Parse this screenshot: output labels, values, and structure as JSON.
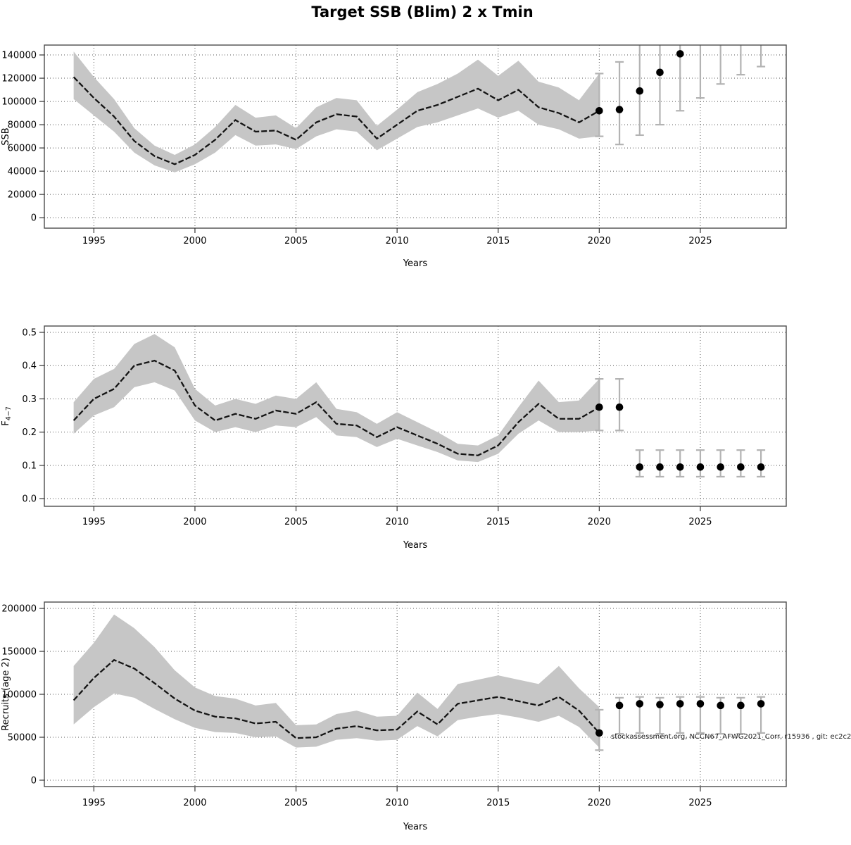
{
  "title": "Target SSB (Blim) 2 x Tmin",
  "watermark": "stockassessment.org, NCCN67_AFWG2021_Corr, r15936 , git: ec2c2",
  "colors": {
    "background": "#ffffff",
    "band": "#c6c6c6",
    "line": "#141414",
    "errorbar": "#b3b3b3",
    "point": "#000000",
    "grid": "#555555",
    "frame": "#4d4d4d",
    "text": "#000000"
  },
  "chart_data": [
    {
      "type": "line",
      "id": "ssb",
      "ylabel": "SSB",
      "xlabel": "Years",
      "xlim": [
        1992.55,
        2029.25
      ],
      "ylim": [
        -9000,
        148500
      ],
      "x_ticks": [
        1995,
        2000,
        2005,
        2010,
        2015,
        2020,
        2025
      ],
      "y_ticks": [
        0,
        20000,
        40000,
        60000,
        80000,
        100000,
        120000,
        140000
      ],
      "y_tick_decimals": 0,
      "grid": true,
      "legend_position": "none",
      "years": [
        1994,
        1995,
        1996,
        1997,
        1998,
        1999,
        2000,
        2001,
        2002,
        2003,
        2004,
        2005,
        2006,
        2007,
        2008,
        2009,
        2010,
        2011,
        2012,
        2013,
        2014,
        2015,
        2016,
        2017,
        2018,
        2019,
        2020
      ],
      "estimate": [
        121000,
        103000,
        87000,
        66000,
        53000,
        46000,
        54000,
        67000,
        84000,
        74000,
        75000,
        67000,
        82000,
        89000,
        87000,
        68000,
        80000,
        92000,
        97000,
        104000,
        111000,
        101000,
        110000,
        95000,
        90000,
        82000,
        92000
      ],
      "lower": [
        102000,
        88000,
        74000,
        56000,
        45000,
        39000,
        46000,
        56000,
        71000,
        62000,
        63000,
        59000,
        70000,
        76000,
        74000,
        58000,
        68000,
        78000,
        82000,
        88000,
        94000,
        86000,
        92000,
        80000,
        76000,
        68000,
        70000
      ],
      "upper": [
        143000,
        121000,
        102000,
        77000,
        62000,
        54000,
        63000,
        78000,
        97000,
        86000,
        88000,
        77000,
        95000,
        103000,
        101000,
        79000,
        93000,
        108000,
        115000,
        124000,
        136000,
        122000,
        135000,
        117000,
        112000,
        101000,
        124000
      ],
      "forecast": {
        "years": [
          2020,
          2021,
          2022,
          2023,
          2024,
          2025,
          2026,
          2027,
          2028
        ],
        "values": [
          92000,
          93000,
          109000,
          125000,
          141000,
          null,
          null,
          null,
          null
        ],
        "lower": [
          70000,
          63000,
          71000,
          80000,
          92000,
          103000,
          115000,
          123000,
          130000
        ],
        "upper": [
          124000,
          134000,
          null,
          null,
          null,
          null,
          null,
          null,
          null
        ]
      }
    },
    {
      "type": "line",
      "id": "f4-7",
      "ylabel": "F",
      "ylabel_sub": "4−7",
      "xlabel": "Years",
      "xlim": [
        1992.55,
        2029.25
      ],
      "ylim": [
        -0.023,
        0.519
      ],
      "x_ticks": [
        1995,
        2000,
        2005,
        2010,
        2015,
        2020,
        2025
      ],
      "y_ticks": [
        0.0,
        0.1,
        0.2,
        0.3,
        0.4,
        0.5
      ],
      "y_tick_decimals": 1,
      "grid": true,
      "legend_position": "none",
      "years": [
        1994,
        1995,
        1996,
        1997,
        1998,
        1999,
        2000,
        2001,
        2002,
        2003,
        2004,
        2005,
        2006,
        2007,
        2008,
        2009,
        2010,
        2011,
        2012,
        2013,
        2014,
        2015,
        2016,
        2017,
        2018,
        2019,
        2020
      ],
      "estimate": [
        0.235,
        0.3,
        0.33,
        0.4,
        0.415,
        0.385,
        0.28,
        0.235,
        0.255,
        0.24,
        0.265,
        0.255,
        0.29,
        0.225,
        0.22,
        0.185,
        0.215,
        0.19,
        0.165,
        0.135,
        0.13,
        0.16,
        0.23,
        0.285,
        0.24,
        0.24,
        0.275
      ],
      "lower": [
        0.195,
        0.25,
        0.275,
        0.335,
        0.35,
        0.325,
        0.235,
        0.2,
        0.215,
        0.2,
        0.22,
        0.215,
        0.245,
        0.19,
        0.185,
        0.155,
        0.18,
        0.16,
        0.14,
        0.115,
        0.11,
        0.135,
        0.195,
        0.235,
        0.2,
        0.2,
        0.205
      ],
      "upper": [
        0.29,
        0.36,
        0.39,
        0.465,
        0.495,
        0.455,
        0.33,
        0.28,
        0.3,
        0.285,
        0.31,
        0.3,
        0.35,
        0.27,
        0.26,
        0.225,
        0.26,
        0.23,
        0.2,
        0.165,
        0.16,
        0.19,
        0.275,
        0.355,
        0.29,
        0.295,
        0.36
      ],
      "forecast": {
        "years": [
          2020,
          2021,
          2022,
          2023,
          2024,
          2025,
          2026,
          2027,
          2028
        ],
        "values": [
          0.275,
          0.275,
          0.095,
          0.095,
          0.095,
          0.095,
          0.095,
          0.095,
          0.095
        ],
        "lower": [
          0.205,
          0.205,
          0.066,
          0.066,
          0.066,
          0.066,
          0.066,
          0.066,
          0.066
        ],
        "upper": [
          0.36,
          0.36,
          0.146,
          0.146,
          0.146,
          0.146,
          0.146,
          0.146,
          0.146
        ]
      }
    },
    {
      "type": "line",
      "id": "recruits",
      "ylabel": "Recruits (age 2)",
      "xlabel": "Years",
      "xlim": [
        1992.55,
        2029.25
      ],
      "ylim": [
        -7400,
        207400
      ],
      "x_ticks": [
        1995,
        2000,
        2005,
        2010,
        2015,
        2020,
        2025
      ],
      "y_ticks": [
        0,
        50000,
        100000,
        150000,
        200000
      ],
      "y_tick_decimals": 0,
      "grid": true,
      "legend_position": "none",
      "years": [
        1994,
        1995,
        1996,
        1997,
        1998,
        1999,
        2000,
        2001,
        2002,
        2003,
        2004,
        2005,
        2006,
        2007,
        2008,
        2009,
        2010,
        2011,
        2012,
        2013,
        2014,
        2015,
        2016,
        2017,
        2018,
        2019,
        2020
      ],
      "estimate": [
        93000,
        119000,
        140000,
        130000,
        113000,
        95000,
        81000,
        74000,
        72000,
        66000,
        68000,
        49000,
        50000,
        60000,
        63000,
        58000,
        59000,
        80000,
        65000,
        89000,
        93000,
        97000,
        92000,
        87000,
        97000,
        81000,
        55000
      ],
      "lower": [
        65000,
        85000,
        101000,
        96000,
        83000,
        71000,
        61000,
        56000,
        55000,
        50000,
        51000,
        38000,
        39000,
        47000,
        49000,
        46000,
        47000,
        63000,
        51000,
        70000,
        74000,
        77000,
        73000,
        68000,
        75000,
        62000,
        38000
      ],
      "upper": [
        133000,
        160000,
        193000,
        177000,
        155000,
        128000,
        108000,
        98000,
        95000,
        87000,
        90000,
        64000,
        65000,
        77000,
        81000,
        74000,
        75000,
        102000,
        83000,
        112000,
        117000,
        122000,
        117000,
        112000,
        133000,
        107000,
        85000
      ],
      "forecast": {
        "years": [
          2020,
          2021,
          2022,
          2023,
          2024,
          2025,
          2026,
          2027,
          2028
        ],
        "values": [
          55000,
          87000,
          89000,
          88000,
          89000,
          89000,
          87000,
          87000,
          89000
        ],
        "lower": [
          35000,
          54000,
          55000,
          54000,
          55000,
          55000,
          54000,
          54000,
          55000
        ],
        "upper": [
          82000,
          96000,
          97000,
          96000,
          97000,
          97000,
          96000,
          96000,
          97000
        ]
      }
    }
  ]
}
